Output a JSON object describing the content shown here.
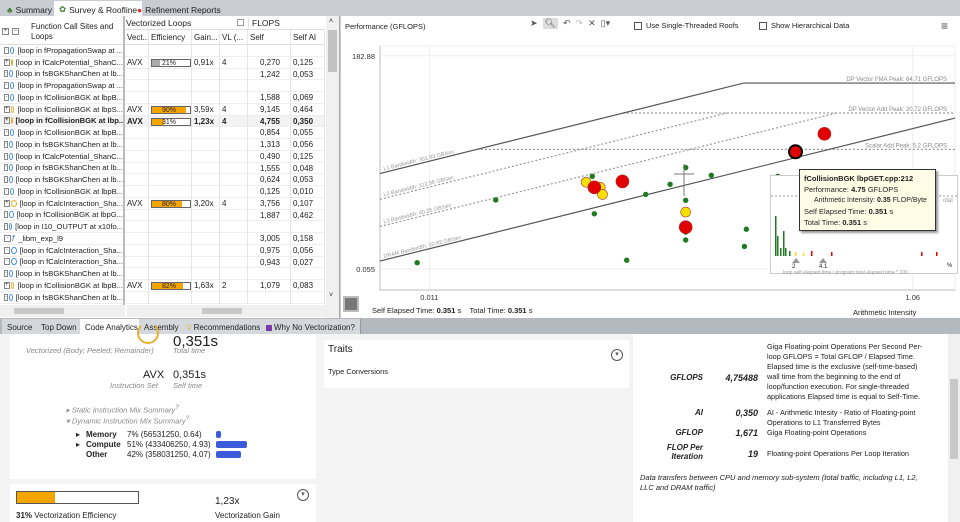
{
  "top_tabs": [
    {
      "label": "Summary",
      "icon": "tree-icon"
    },
    {
      "label": "Survey & Roofline",
      "icon": "survey-icon",
      "active": true
    },
    {
      "label": "Refinement Reports",
      "icon": "refinement-icon"
    }
  ],
  "survey": {
    "tree_header": "Function Call Sites and Loops",
    "group_headers": {
      "vectorized": "Vectorized Loops",
      "flops": "FLOPS"
    },
    "columns": [
      "Vect...",
      "Efficiency",
      "Gain...",
      "VL (...",
      "Self GFLOPS",
      "Self AI"
    ],
    "rows": [
      {
        "name": "[loop in fPropagationSwap at ...",
        "icon": "loop-icon",
        "isa": "",
        "eff": "",
        "eff_pct": null,
        "gain": "",
        "vl": "",
        "gflops": "",
        "ai": ""
      },
      {
        "name": "[loop in fCalcPotential_ShanC...",
        "icon": "vector-loop-icon",
        "isa": "AVX",
        "eff": "21%",
        "eff_pct": 21,
        "gain": "0,91x",
        "vl": "4",
        "gflops": "0,270",
        "ai": "0,125"
      },
      {
        "name": "[loop in fsBGKShanChen at lb...",
        "icon": "loop-icon",
        "isa": "",
        "eff": "",
        "eff_pct": null,
        "gain": "",
        "vl": "",
        "gflops": "1,242",
        "ai": "0,053"
      },
      {
        "name": "[loop in fPropagationSwap at ...",
        "icon": "loop-icon",
        "isa": "",
        "eff": "",
        "eff_pct": null,
        "gain": "",
        "vl": "",
        "gflops": "",
        "ai": ""
      },
      {
        "name": "[loop in fCollisionBGK at lbpB...",
        "icon": "loop-icon",
        "isa": "",
        "eff": "",
        "eff_pct": null,
        "gain": "",
        "vl": "",
        "gflops": "1,588",
        "ai": "0,069"
      },
      {
        "name": "[loop in fCollisionBGK at lbpS...",
        "icon": "vector-loop-icon",
        "isa": "AVX",
        "eff": "90%",
        "eff_pct": 90,
        "gain": "3,59x",
        "vl": "4",
        "gflops": "9,145",
        "ai": "0,464"
      },
      {
        "name": "[loop in fCollisionBGK at lbp...",
        "icon": "vector-loop-icon",
        "isa": "AVX",
        "eff": "31%",
        "eff_pct": 31,
        "gain": "1,23x",
        "vl": "4",
        "gflops": "4,755",
        "ai": "0,350",
        "selected": true
      },
      {
        "name": "[loop in fCollisionBGK at lbpB...",
        "icon": "loop-icon",
        "isa": "",
        "eff": "",
        "eff_pct": null,
        "gain": "",
        "vl": "",
        "gflops": "0,854",
        "ai": "0,055"
      },
      {
        "name": "[loop in fsBGKShanChen at lb...",
        "icon": "loop-icon",
        "isa": "",
        "eff": "",
        "eff_pct": null,
        "gain": "",
        "vl": "",
        "gflops": "1,313",
        "ai": "0,056"
      },
      {
        "name": "[loop in fCalcPotential_ShanC...",
        "icon": "loop-icon",
        "isa": "",
        "eff": "",
        "eff_pct": null,
        "gain": "",
        "vl": "",
        "gflops": "0,490",
        "ai": "0,125"
      },
      {
        "name": "[loop in fsBGKShanChen at lb...",
        "icon": "loop-icon",
        "isa": "",
        "eff": "",
        "eff_pct": null,
        "gain": "",
        "vl": "",
        "gflops": "1,555",
        "ai": "0,048"
      },
      {
        "name": "[loop in fsBGKShanChen at lb...",
        "icon": "loop-icon",
        "isa": "",
        "eff": "",
        "eff_pct": null,
        "gain": "",
        "vl": "",
        "gflops": "0,624",
        "ai": "0,053"
      },
      {
        "name": "[loop in fCollisionBGK at lbpB...",
        "icon": "loop-icon",
        "isa": "",
        "eff": "",
        "eff_pct": null,
        "gain": "",
        "vl": "",
        "gflops": "0,125",
        "ai": "0,010"
      },
      {
        "name": "[loop in fCalcInteraction_Sha...",
        "icon": "vector-loop-icon",
        "isa": "AVX",
        "eff": "80%",
        "eff_pct": 80,
        "gain": "3,20x",
        "vl": "4",
        "gflops": "3,756",
        "ai": "0,107"
      },
      {
        "name": "[loop in fCollisionBGK at lbpG...",
        "icon": "loop-icon",
        "isa": "",
        "eff": "",
        "eff_pct": null,
        "gain": "",
        "vl": "",
        "gflops": "1,887",
        "ai": "0,462"
      },
      {
        "name": "[loop in I10_OUTPUT at x10fo...",
        "icon": "loop-icon",
        "isa": "",
        "eff": "",
        "eff_pct": null,
        "gain": "",
        "vl": "",
        "gflops": "",
        "ai": ""
      },
      {
        "name": "_libm_exp_l9",
        "icon": "function-icon",
        "isa": "",
        "eff": "",
        "eff_pct": null,
        "gain": "",
        "vl": "",
        "gflops": "3,005",
        "ai": "0,158"
      },
      {
        "name": "[loop in fCalcInteraction_Sha...",
        "icon": "loop-icon",
        "isa": "",
        "eff": "",
        "eff_pct": null,
        "gain": "",
        "vl": "",
        "gflops": "0,975",
        "ai": "0,056"
      },
      {
        "name": "[loop in fCalcInteraction_Sha...",
        "icon": "loop-icon",
        "isa": "",
        "eff": "",
        "eff_pct": null,
        "gain": "",
        "vl": "",
        "gflops": "0,943",
        "ai": "0,027"
      },
      {
        "name": "[loop in fsBGKShanChen at lb...",
        "icon": "loop-icon",
        "isa": "",
        "eff": "",
        "eff_pct": null,
        "gain": "",
        "vl": "",
        "gflops": "",
        "ai": ""
      },
      {
        "name": "[loop in fCollisionBGK at lbpB...",
        "icon": "vector-loop-icon",
        "isa": "AVX",
        "eff": "82%",
        "eff_pct": 82,
        "gain": "1,63x",
        "vl": "2",
        "gflops": "1,079",
        "ai": "0,083"
      },
      {
        "name": "[loop in fsBGKShanChen at lb...",
        "icon": "loop-icon",
        "isa": "",
        "eff": "",
        "eff_pct": null,
        "gain": "",
        "vl": "",
        "gflops": "",
        "ai": ""
      }
    ]
  },
  "roofline": {
    "toolbar": {
      "use_single_threaded": "Use Single-Threaded Roofs",
      "show_hierarchical": "Show Hierarchical Data"
    },
    "footer": {
      "self_label": "Self Elapsed Time:",
      "self_value": "0.351",
      "self_unit": "s",
      "total_label": "Total Time:",
      "total_value": "0.351",
      "total_unit": "s"
    },
    "tooltip": {
      "title": "fCollisionBGK lbpGET.cpp:212",
      "perf_label": "Performance:",
      "perf_value": "4.75",
      "perf_unit": "GFLOPS",
      "ai_label": "Arithmetic Intensity:",
      "ai_value": "0.35",
      "ai_unit": "FLOP/Byte",
      "self_label": "Self Elapsed Time:",
      "self_value": "0.351",
      "self_unit": "s",
      "total_label": "Total Time:",
      "total_value": "0.351",
      "total_unit": "s"
    },
    "histogram": {
      "markers": [
        "2",
        "4.1"
      ],
      "pct": "%",
      "caption": "loop self elapsed time / program total elapsed time * 100",
      "total_text": "otal"
    }
  },
  "chart_data": {
    "type": "scatter",
    "ylabel": "Performance (GFLOPS)",
    "xlabel": "Arithmetic Intensity (FLOP/Byte)",
    "xscale": "log",
    "yscale": "log",
    "xticks": [
      "0.011",
      "1.06"
    ],
    "yticks": [
      "182.88",
      "0.055"
    ],
    "xlim": [
      0.0069,
      1.58
    ],
    "ylim": [
      0.0248,
      265
    ],
    "roofs": [
      {
        "name": "DP Vector FMA Peak: 64.71 GFLOPS",
        "kind": "compute",
        "value": 64.71,
        "style": "solid"
      },
      {
        "name": "DP Vector Add Peak: 20.72 GFLOPS",
        "kind": "compute",
        "value": 20.72,
        "style": "dashed"
      },
      {
        "name": "Scalar Add Peak: 5.2 GFLOPS",
        "kind": "compute",
        "value": 5.2,
        "style": "dashed"
      },
      {
        "name": "L1 Bandwidth: 301.83 GB/sec",
        "kind": "memory",
        "value": 301.83,
        "style": "solid",
        "top": 64.71
      },
      {
        "name": "L2 Bandwidth: 112.98 GB/sec",
        "kind": "memory",
        "value": 112.98,
        "style": "dashed",
        "top": 20.72
      },
      {
        "name": "L3 Bandwidth: 40.25 GB/sec",
        "kind": "memory",
        "value": 40.25,
        "style": "dashed",
        "top": 20.72
      },
      {
        "name": "DRAM Bandwidth: 10.82 GB/sec",
        "kind": "memory",
        "value": 10.82,
        "style": "solid",
        "top": 64.71
      }
    ],
    "points": [
      {
        "x": 0.0098,
        "y": 0.07,
        "color": "green",
        "size": "s"
      },
      {
        "x": 0.0206,
        "y": 0.76,
        "color": "green",
        "size": "s"
      },
      {
        "x": 0.0513,
        "y": 1.87,
        "color": "green",
        "size": "s"
      },
      {
        "x": 0.0523,
        "y": 0.45,
        "color": "green",
        "size": "s"
      },
      {
        "x": 0.0565,
        "y": 0.87,
        "color": "green",
        "size": "s"
      },
      {
        "x": 0.071,
        "y": 0.077,
        "color": "green",
        "size": "s"
      },
      {
        "x": 0.085,
        "y": 0.94,
        "color": "green",
        "size": "s"
      },
      {
        "x": 0.107,
        "y": 1.38,
        "color": "green",
        "size": "s"
      },
      {
        "x": 0.124,
        "y": 2.6,
        "color": "green",
        "size": "s"
      },
      {
        "x": 0.158,
        "y": 1.94,
        "color": "green",
        "size": "s"
      },
      {
        "x": 0.124,
        "y": 0.75,
        "color": "green",
        "size": "s"
      },
      {
        "x": 0.124,
        "y": 0.224,
        "color": "green",
        "size": "s"
      },
      {
        "x": 0.124,
        "y": 0.166,
        "color": "green",
        "size": "s"
      },
      {
        "x": 0.216,
        "y": 0.13,
        "color": "green",
        "size": "s"
      },
      {
        "x": 0.296,
        "y": 1.87,
        "color": "green",
        "size": "s"
      },
      {
        "x": 0.22,
        "y": 0.25,
        "color": "green",
        "size": "s"
      },
      {
        "x": 0.0484,
        "y": 1.49,
        "color": "yellow",
        "size": "m"
      },
      {
        "x": 0.0553,
        "y": 1.23,
        "color": "yellow",
        "size": "m"
      },
      {
        "x": 0.0565,
        "y": 0.94,
        "color": "yellow",
        "size": "m"
      },
      {
        "x": 0.124,
        "y": 0.48,
        "color": "yellow",
        "size": "m"
      },
      {
        "x": 0.0523,
        "y": 1.23,
        "color": "red",
        "size": "l"
      },
      {
        "x": 0.0682,
        "y": 1.54,
        "color": "red",
        "size": "l"
      },
      {
        "x": 0.124,
        "y": 0.27,
        "color": "red",
        "size": "l"
      },
      {
        "x": 0.46,
        "y": 9.4,
        "color": "red",
        "size": "l"
      },
      {
        "x": 0.35,
        "y": 4.75,
        "color": "red",
        "size": "l",
        "selected": true
      }
    ]
  },
  "bottom_tabs": [
    {
      "label": "Source"
    },
    {
      "label": "Top Down"
    },
    {
      "label": "Code Analytics",
      "active": true
    },
    {
      "label": "Assembly"
    },
    {
      "label": "Recommendations",
      "icon": "lightbulb-icon"
    },
    {
      "label": "Why No Vectorization?",
      "icon": "purple-square-icon"
    }
  ],
  "analytics": {
    "vectorized_caption": "Vectorized (Body; Peeled; Remainder)",
    "total_time": "0,351s",
    "total_time_label": "Total time",
    "isa": "AVX",
    "isa_label": "Instruction Set",
    "self_time": "0,351s",
    "self_time_label": "Self time",
    "static_mix": "Static Instruction Mix Summary",
    "dynamic_mix": "Dynamic Instruction Mix Summary",
    "mix": [
      {
        "label": "Memory",
        "value": "7% (56531250, 0.64)",
        "pct": 7
      },
      {
        "label": "Compute",
        "value": "51% (433406250, 4.93)",
        "pct": 51
      },
      {
        "label": "Other",
        "value": "42% (358031250, 4.07)",
        "pct": 42
      }
    ],
    "efficiency_pct": 31,
    "efficiency_value": "31%",
    "efficiency_label": "Vectorization Efficiency",
    "gain": "1,23x",
    "gain_label": "Vectorization Gain"
  },
  "traits": {
    "title": "Traits",
    "items": [
      "Type Conversions"
    ]
  },
  "metrics": {
    "rows": [
      {
        "name": "GFLOPS",
        "value": "4,75488",
        "desc": "Giga Floating-point Operations Per Second Per-loop GFLOPS = Total GFLOP / Elapsed Time. Elapsed time is the exclusive (self-time-based) wall time from the beginning to the end of loop/function execution. For single-threaded applications Elapsed time is equal to Self-Time."
      },
      {
        "name": "AI",
        "value": "0,350",
        "desc": "AI - Arithmetic Intesity - Ratio of Floating-point Operations to L1 Transferred Bytes"
      },
      {
        "name": "GFLOP",
        "value": "1,671",
        "desc": "Giga Floating-point Operations"
      },
      {
        "name": "FLOP Per Iteration",
        "value": "19",
        "desc": "Floating-point Operations Per Loop Iteration"
      }
    ],
    "note": "Data transfers between CPU and memory sub-system (total traffic, including L1, L2, LLC and DRAM traffic)"
  }
}
